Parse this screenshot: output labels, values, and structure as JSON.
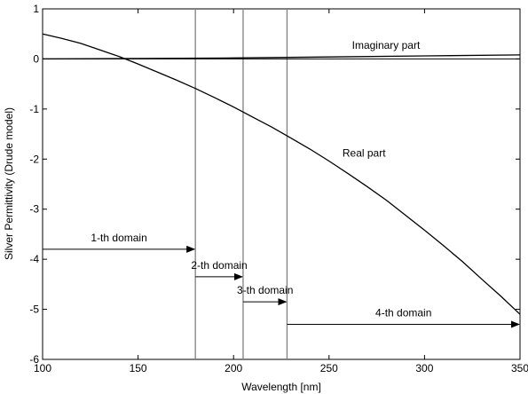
{
  "chart_data": {
    "type": "line",
    "xlabel": "Wavelength [nm]",
    "ylabel": "Silver Permittivity (Drude model)",
    "xlim": [
      100,
      350
    ],
    "ylim": [
      -6,
      1
    ],
    "grid": false,
    "x_ticks": [
      100,
      150,
      200,
      250,
      300,
      350
    ],
    "y_ticks": [
      1,
      0,
      -1,
      -2,
      -3,
      -4,
      -5,
      -6
    ],
    "series": [
      {
        "name": "Real part",
        "x": [
          100,
          110,
          120,
          130,
          140,
          150,
          160,
          170,
          180,
          190,
          200,
          210,
          220,
          230,
          240,
          250,
          260,
          270,
          280,
          290,
          300,
          310,
          320,
          330,
          340,
          350
        ],
        "y": [
          0.5,
          0.41,
          0.31,
          0.18,
          0.05,
          -0.1,
          -0.26,
          -0.42,
          -0.59,
          -0.77,
          -0.96,
          -1.16,
          -1.36,
          -1.58,
          -1.8,
          -2.04,
          -2.29,
          -2.55,
          -2.82,
          -3.12,
          -3.42,
          -3.73,
          -4.05,
          -4.4,
          -4.74,
          -5.1
        ]
      },
      {
        "name": "Imaginary part",
        "x": [
          100,
          150,
          200,
          250,
          300,
          350
        ],
        "y": [
          0.0,
          0.01,
          0.02,
          0.04,
          0.06,
          0.08
        ]
      }
    ],
    "vertical_lines": [
      180,
      205,
      228
    ],
    "annotations": [
      {
        "text": "Imaginary part",
        "x": 262,
        "y": 0.2
      },
      {
        "text": "Real part",
        "x": 257,
        "y": -1.95
      }
    ],
    "domains": [
      {
        "label": "1-th domain",
        "x_start": 100,
        "x_end": 180,
        "y": -3.8
      },
      {
        "label": "2-th domain",
        "x_start": 180,
        "x_end": 205,
        "y": -4.35
      },
      {
        "label": "3-th domain",
        "x_start": 205,
        "x_end": 228,
        "y": -4.85
      },
      {
        "label": "4-th domain",
        "x_start": 228,
        "x_end": 350,
        "y": -5.3
      }
    ]
  }
}
